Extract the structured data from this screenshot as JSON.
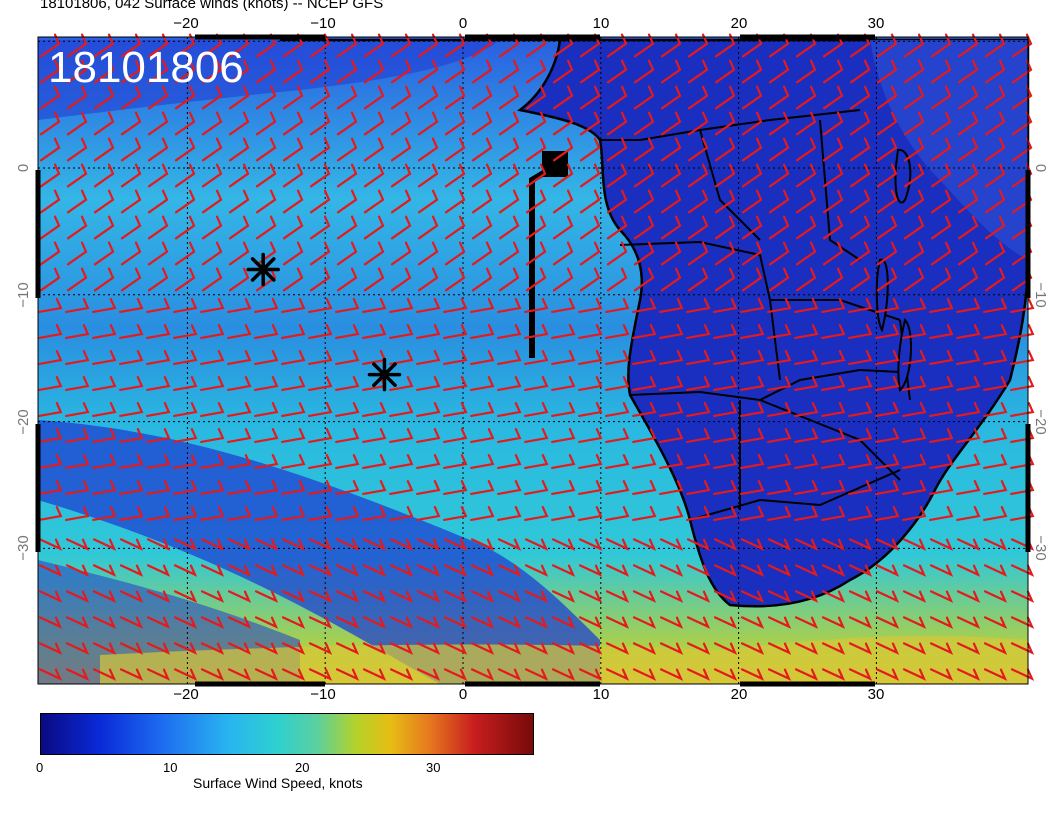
{
  "title": "18101806, 042 Surface winds (knots) -- NCEP GFS",
  "panel_label": "18101806",
  "x_axis": {
    "top_ticks": [
      "−20",
      "−10",
      "0",
      "10",
      "20",
      "30"
    ],
    "bottom_ticks": [
      "−20",
      "−10",
      "0",
      "10",
      "20",
      "30"
    ]
  },
  "y_axis": {
    "left_ticks": [
      "0",
      "−10",
      "−20",
      "−30"
    ],
    "right_ticks": [
      "0",
      "−10",
      "−20",
      "−30"
    ]
  },
  "colorbar": {
    "label": "Surface Wind Speed, knots",
    "ticks": [
      "0",
      "10",
      "20",
      "30"
    ]
  },
  "markers": [
    {
      "name": "asterisk",
      "lon": -14.5,
      "lat": -8.0
    },
    {
      "name": "asterisk",
      "lon": -5.7,
      "lat": -16.3
    }
  ],
  "colors": {
    "barbs": "#e41a1c",
    "coast": "#000000",
    "ocean_low": "#1e3cd2",
    "ocean_high": "#32c8dc"
  }
}
